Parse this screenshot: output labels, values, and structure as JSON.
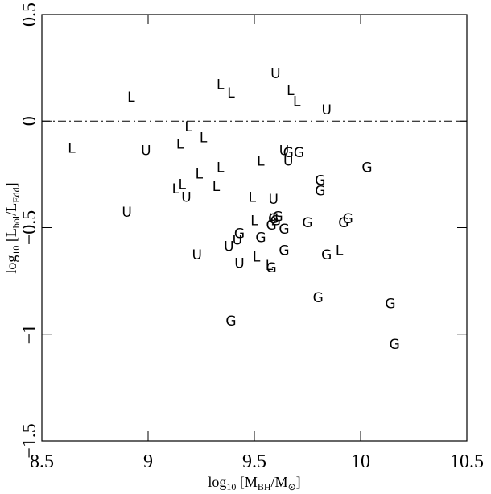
{
  "chart_data": {
    "type": "scatter",
    "xlabel": [
      "log",
      "10",
      " [M",
      "BH",
      "/M",
      "⊙",
      "]"
    ],
    "ylabel": [
      "log",
      "10",
      " [L",
      "bol",
      "/L",
      "Edd",
      "]"
    ],
    "xlim": [
      8.5,
      10.5
    ],
    "ylim": [
      -1.5,
      0.5
    ],
    "xticks": [
      8.5,
      9,
      9.5,
      10,
      10.5
    ],
    "yticks": [
      {
        "value": -1.5,
        "label": "−1.5"
      },
      {
        "value": -1,
        "label": "−1"
      },
      {
        "value": -0.5,
        "label": "−0.5"
      },
      0,
      0.5
    ],
    "hline": 0,
    "series": [
      {
        "name": "L",
        "color": "#000000",
        "x": [
          8.64,
          8.92,
          9.19,
          9.15,
          9.26,
          9.34,
          9.39,
          9.67,
          9.7,
          9.13,
          9.16,
          9.24,
          9.34,
          9.32,
          9.53,
          9.49,
          9.5,
          9.51,
          9.57,
          9.9
        ],
        "values": [
          -0.13,
          0.11,
          -0.03,
          -0.11,
          -0.08,
          0.17,
          0.13,
          0.14,
          0.09,
          -0.32,
          -0.3,
          -0.25,
          -0.22,
          -0.31,
          -0.19,
          -0.36,
          -0.47,
          -0.64,
          -0.68,
          -0.61
        ]
      },
      {
        "name": "U",
        "color": "#000000",
        "x": [
          9.6,
          9.84,
          8.99,
          8.9,
          9.18,
          9.23,
          9.38,
          9.43,
          9.42,
          9.59,
          9.59,
          9.64,
          9.66
        ],
        "values": [
          0.22,
          0.05,
          -0.14,
          -0.43,
          -0.36,
          -0.63,
          -0.59,
          -0.67,
          -0.56,
          -0.37,
          -0.46,
          -0.14,
          -0.19
        ]
      },
      {
        "name": "G",
        "color": "#000000",
        "x": [
          9.43,
          9.53,
          9.58,
          9.58,
          9.59,
          9.61,
          9.6,
          9.64,
          9.64,
          9.66,
          9.71,
          9.75,
          9.81,
          9.81,
          9.84,
          9.8,
          10.03,
          9.94,
          9.92,
          10.14,
          10.16,
          9.39
        ],
        "values": [
          -0.53,
          -0.55,
          -0.69,
          -0.49,
          -0.46,
          -0.45,
          -0.47,
          -0.51,
          -0.61,
          -0.15,
          -0.15,
          -0.48,
          -0.28,
          -0.33,
          -0.63,
          -0.83,
          -0.22,
          -0.46,
          -0.48,
          -0.86,
          -1.05,
          -0.94
        ]
      }
    ]
  }
}
